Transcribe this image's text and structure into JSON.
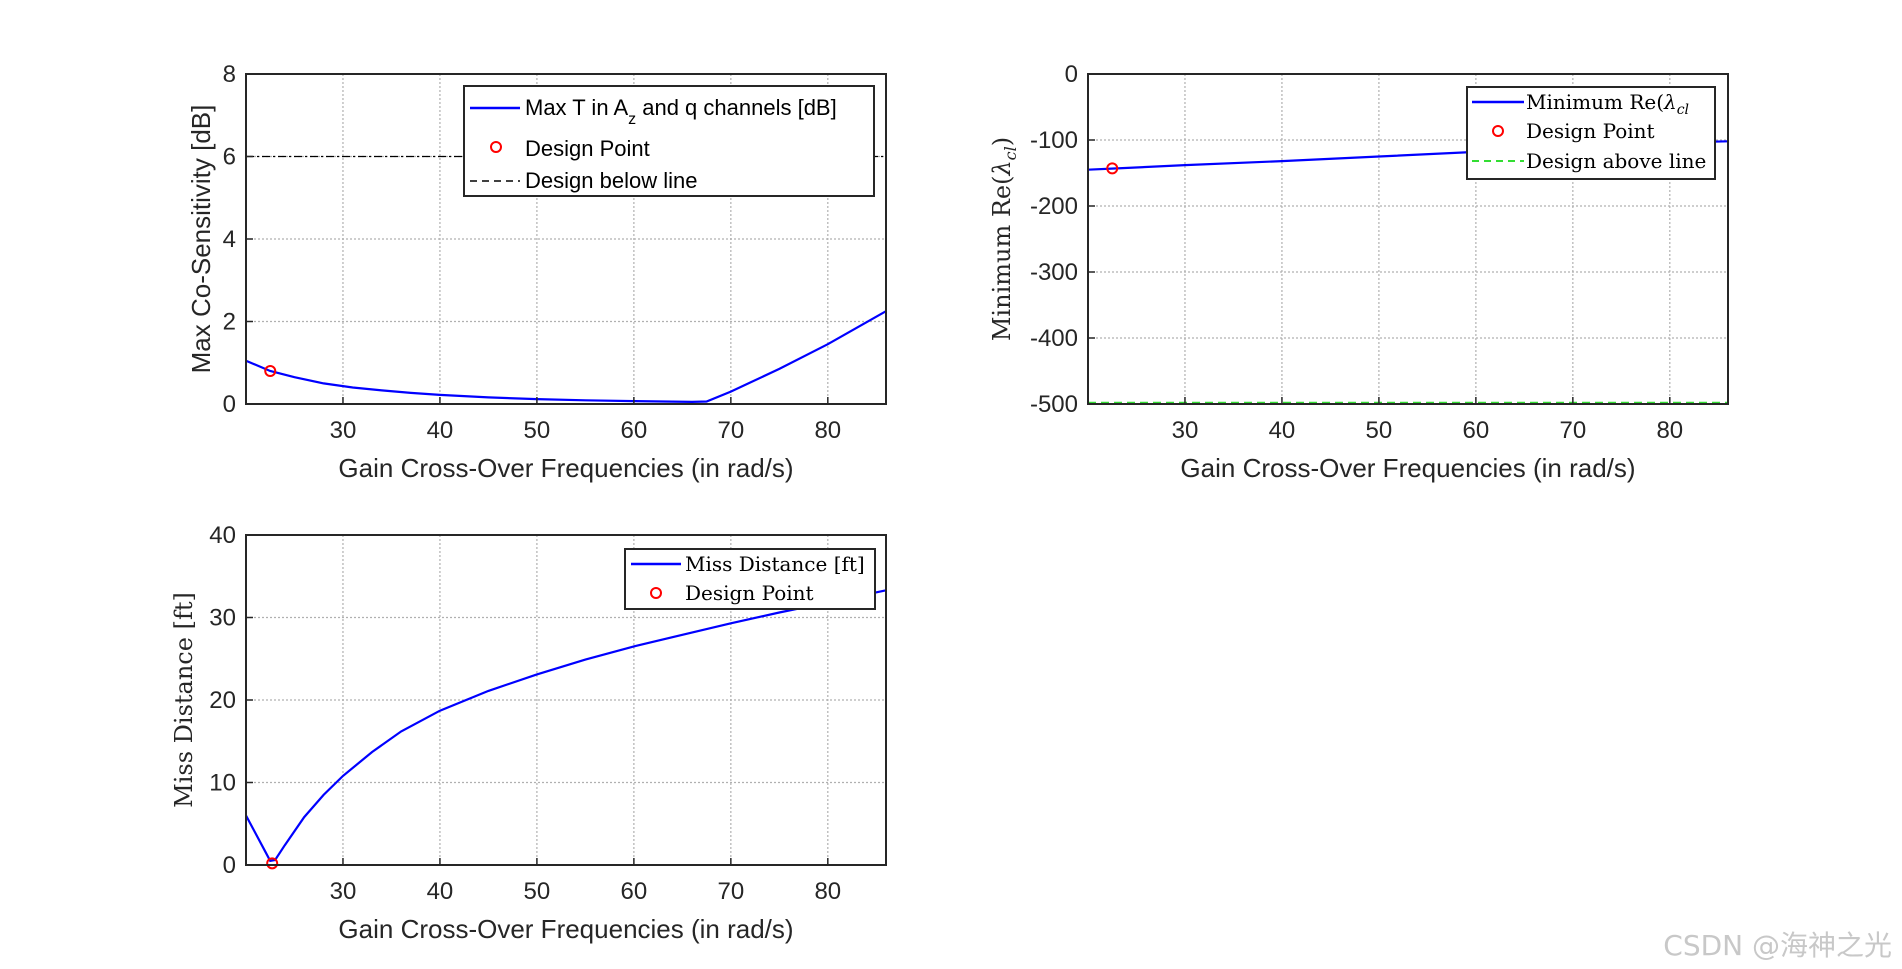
{
  "watermark": "CSDN @海神之光",
  "colors": {
    "series": "#0000ff",
    "design_point": "#ff0000",
    "ref_dash": "#000000",
    "above_line": "#33dd33",
    "grid": "#b0b0b0"
  },
  "chart_data": [
    {
      "type": "line",
      "id": "cosens",
      "xlabel": "Gain Cross-Over Frequencies (in rad/s)",
      "ylabel": "Max Co-Sensitivity [dB]",
      "xlim": [
        20,
        86
      ],
      "ylim": [
        0,
        8
      ],
      "xticks": [
        30,
        40,
        50,
        60,
        70,
        80
      ],
      "yticks": [
        0,
        2,
        4,
        6,
        8
      ],
      "series": [
        {
          "name": "Max T in A",
          "sub": "z",
          "name_rest": " and q channels [dB]",
          "x": [
            20,
            22.5,
            25,
            28,
            31,
            34,
            37,
            40,
            45,
            50,
            55,
            60,
            63,
            66,
            67.5,
            70,
            75,
            80,
            86
          ],
          "y": [
            1.05,
            0.8,
            0.65,
            0.5,
            0.4,
            0.33,
            0.27,
            0.22,
            0.16,
            0.12,
            0.09,
            0.07,
            0.06,
            0.05,
            0.06,
            0.3,
            0.85,
            1.45,
            2.25
          ]
        }
      ],
      "design_point": {
        "label": "Design Point",
        "x": 22.5,
        "y": 0.8
      },
      "ref_line": {
        "label": "Design below line",
        "y": 6
      }
    },
    {
      "type": "line",
      "id": "eig",
      "xlabel": "Gain Cross-Over Frequencies (in rad/s)",
      "ylabel": "Minimum Re(λcl)",
      "ylabel_main": "Minimum Re(",
      "ylabel_sym": "λ",
      "ylabel_sub": "cl",
      "ylabel_close": ")",
      "xlim": [
        20,
        86
      ],
      "ylim": [
        -500,
        0
      ],
      "xticks": [
        30,
        40,
        50,
        60,
        70,
        80
      ],
      "yticks": [
        0,
        -100,
        -200,
        -300,
        -400,
        -500
      ],
      "series": [
        {
          "name": "Minimum Re(λcl",
          "name_main": "Minimum Re(",
          "name_sym": "λ",
          "name_sub": "cl",
          "x": [
            20,
            23,
            30,
            40,
            50,
            60,
            70,
            80,
            86
          ],
          "y": [
            -145,
            -143,
            -138,
            -132,
            -125,
            -118,
            -111,
            -104,
            -102
          ]
        }
      ],
      "design_point": {
        "label": "Design Point",
        "x": 22.5,
        "y": -143
      },
      "ref_line": {
        "label": "Design above line",
        "y": -500
      }
    },
    {
      "type": "line",
      "id": "miss",
      "xlabel": "Gain Cross-Over Frequencies (in rad/s)",
      "ylabel": "Miss Distance [ft]",
      "xlim": [
        20,
        86
      ],
      "ylim": [
        0,
        40
      ],
      "xticks": [
        30,
        40,
        50,
        60,
        70,
        80
      ],
      "yticks": [
        0,
        10,
        20,
        30,
        40
      ],
      "series": [
        {
          "name": "Miss Distance [ft]",
          "x": [
            20,
            21,
            22,
            22.5,
            23,
            24,
            26,
            28,
            30,
            33,
            36,
            40,
            45,
            50,
            55,
            60,
            65,
            70,
            75,
            80,
            86
          ],
          "y": [
            6,
            3.8,
            1.6,
            0.5,
            0.6,
            2.4,
            5.8,
            8.5,
            10.8,
            13.7,
            16.2,
            18.7,
            21.1,
            23.1,
            24.9,
            26.5,
            27.9,
            29.3,
            30.6,
            31.8,
            33.3
          ]
        }
      ],
      "design_point": {
        "label": "Design Point",
        "x": 22.7,
        "y": 0.2
      }
    }
  ]
}
